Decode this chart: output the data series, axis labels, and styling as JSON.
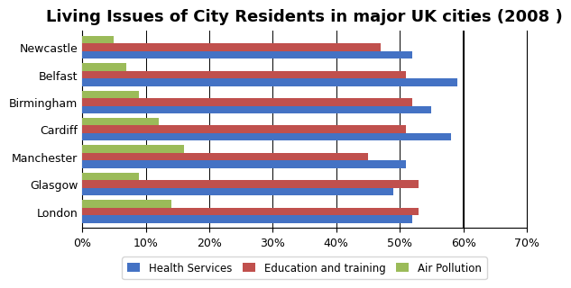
{
  "title": "Living Issues of City Residents in major UK cities (2008 )",
  "cities": [
    "London",
    "Glasgow",
    "Manchester",
    "Cardiff",
    "Birmingham",
    "Belfast",
    "Newcastle"
  ],
  "health_services": [
    52,
    49,
    51,
    58,
    55,
    59,
    52
  ],
  "education_training": [
    53,
    53,
    45,
    51,
    52,
    51,
    47
  ],
  "air_pollution": [
    14,
    9,
    16,
    12,
    9,
    7,
    5
  ],
  "colors": {
    "health": "#4472C4",
    "education": "#C0504D",
    "air": "#9BBB59"
  },
  "xlim": [
    0,
    70
  ],
  "xticks": [
    0,
    10,
    20,
    30,
    40,
    50,
    60,
    70
  ],
  "legend_labels": [
    "Health Services",
    "Education and training",
    "Air Pollution"
  ],
  "bar_height": 0.28,
  "title_fontsize": 13,
  "city_fontsize": 9,
  "xtick_fontsize": 9
}
